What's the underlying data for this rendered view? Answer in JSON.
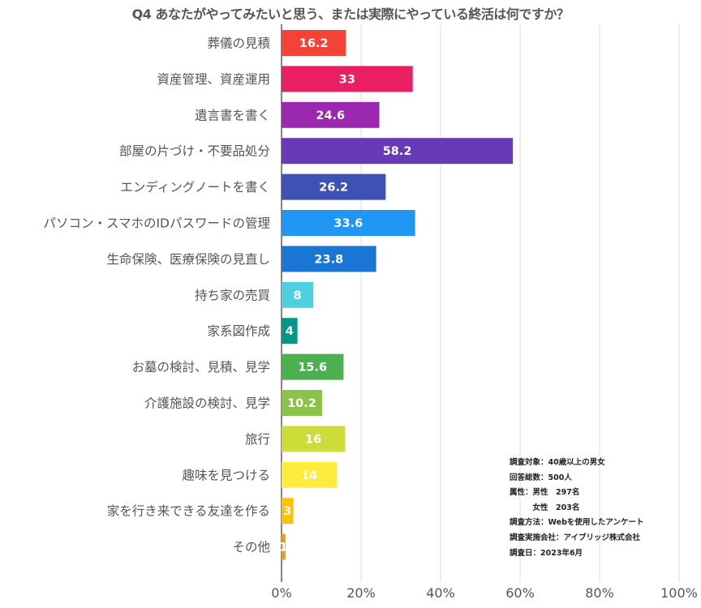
{
  "chart_data": {
    "type": "bar",
    "orientation": "horizontal",
    "title": "Q4 あなたがやってみたいと思う、または実際にやっている終活は何ですか？",
    "categories": [
      "葬儀の見積",
      "資産管理、資産運用",
      "遺言書を書く",
      "部屋の片づけ・不要品処分",
      "エンディングノートを書く",
      "パソコン・スマホのIDパスワードの管理",
      "生命保険、医療保険の見直し",
      "持ち家の売買",
      "家系図作成",
      "お墓の検討、見積、見学",
      "介護施設の検討、見学",
      "旅行",
      "趣味を見つける",
      "家を行き来できる友達を作る",
      "その他"
    ],
    "values": [
      16.2,
      33,
      24.6,
      58.2,
      26.2,
      33.6,
      23.8,
      8,
      4,
      15.6,
      10.2,
      16,
      14,
      3,
      1
    ],
    "value_labels": [
      "16.2",
      "33",
      "24.6",
      "58.2",
      "26.2",
      "33.6",
      "23.8",
      "8",
      "4",
      "15.6",
      "10.2",
      "16",
      "14",
      "3",
      "1"
    ],
    "colors": [
      "#f44336",
      "#e91e63",
      "#9c27b0",
      "#673ab7",
      "#3f51b5",
      "#2196f3",
      "#1976d2",
      "#4dd0e1",
      "#009688",
      "#4caf50",
      "#8bc34a",
      "#cddc39",
      "#ffeb3b",
      "#ffc107",
      "#ff9800"
    ],
    "xlim": [
      0,
      100
    ],
    "x_ticks": [
      "0%",
      "20%",
      "40%",
      "60%",
      "80%",
      "100%"
    ],
    "grid": true
  },
  "notes": [
    "調査対象：40歳以上の男女",
    "回答総数：500人",
    "属性：男性　297名",
    "　　　女性　203名",
    "調査方法：Webを使用したアンケート",
    "調査実施会社：アイブリッジ株式会社",
    "調査日：2023年6月"
  ]
}
